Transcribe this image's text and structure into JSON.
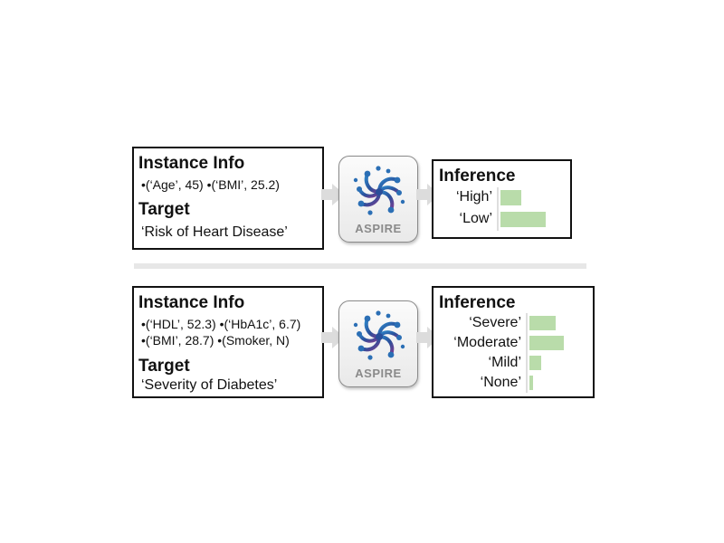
{
  "colors": {
    "bar": "#b9dcaa",
    "logo_gray": "#8a8a8a",
    "divider": "#e7e7e7",
    "border": "#111111"
  },
  "examples": [
    {
      "instance_heading": "Instance Info",
      "instance_lines": [
        "•(‘Age’, 45)  •(‘BMI’, 25.2)"
      ],
      "target_heading": "Target",
      "target_text": "‘Risk of Heart Disease’",
      "logo_label": "ASPIRE",
      "inference_heading": "Inference",
      "inference": [
        {
          "label": "‘High’",
          "value": 0.45
        },
        {
          "label": "‘Low’",
          "value": 1.0
        }
      ]
    },
    {
      "instance_heading": "Instance Info",
      "instance_lines": [
        "•(‘HDL’, 52.3) •(‘HbA1c’, 6.7)",
        "•(‘BMI’, 28.7) •(Smoker, N)"
      ],
      "target_heading": "Target",
      "target_text": "‘Severity of Diabetes’",
      "logo_label": "ASPIRE",
      "inference_heading": "Inference",
      "inference": [
        {
          "label": "‘Severe’",
          "value": 0.75
        },
        {
          "label": "‘Moderate’",
          "value": 1.0
        },
        {
          "label": "‘Mild’",
          "value": 0.35
        },
        {
          "label": "‘None’",
          "value": 0.1
        }
      ]
    }
  ]
}
